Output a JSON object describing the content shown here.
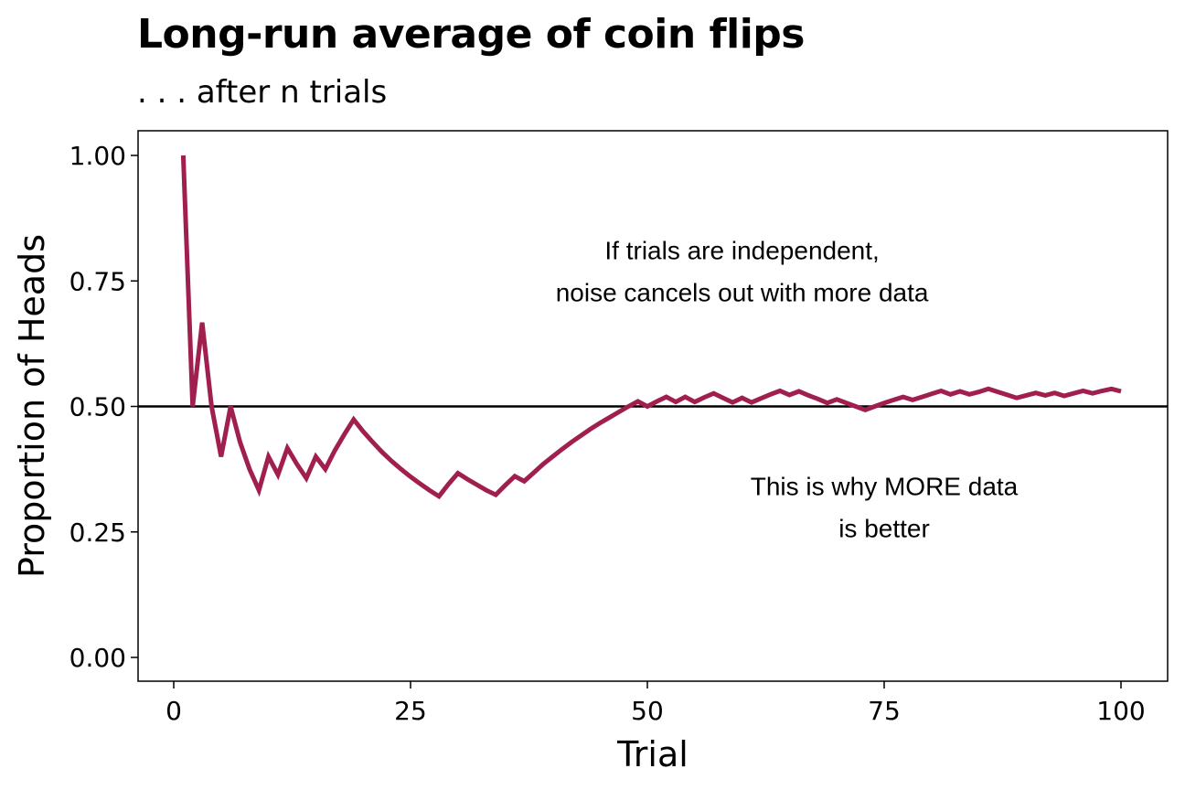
{
  "chart_data": {
    "type": "line",
    "title": "Long-run average of coin flips",
    "subtitle": ". . . after n trials",
    "xlabel": "Trial",
    "ylabel": "Proportion of Heads",
    "xlim": [
      0,
      100
    ],
    "ylim": [
      0,
      1
    ],
    "x_ticks": [
      "0",
      "25",
      "50",
      "75",
      "100"
    ],
    "y_ticks": [
      "0.00",
      "0.25",
      "0.50",
      "0.75",
      "1.00"
    ],
    "grid": false,
    "reference_line": {
      "y": 0.5,
      "color": "#000000"
    },
    "line_color": "#a01f4f",
    "annotations": [
      {
        "lines": [
          "If trials are independent,",
          "noise cancels out with more data"
        ],
        "x": 60,
        "y": 0.77
      },
      {
        "lines": [
          "This is why MORE data",
          "is better"
        ],
        "x": 75,
        "y": 0.3
      }
    ],
    "series": [
      {
        "x": [
          1,
          2,
          3,
          4,
          5,
          6,
          7,
          8,
          9,
          10,
          11,
          12,
          13,
          14,
          15,
          16,
          17,
          18,
          19,
          20,
          21,
          22,
          23,
          24,
          25,
          26,
          27,
          28,
          29,
          30,
          31,
          32,
          33,
          34,
          35,
          36,
          37,
          38,
          39,
          40,
          41,
          42,
          43,
          44,
          45,
          46,
          47,
          48,
          49,
          50,
          51,
          52,
          53,
          54,
          55,
          56,
          57,
          58,
          59,
          60,
          61,
          62,
          63,
          64,
          65,
          66,
          67,
          68,
          69,
          70,
          71,
          72,
          73,
          74,
          75,
          76,
          77,
          78,
          79,
          80,
          81,
          82,
          83,
          84,
          85,
          86,
          87,
          88,
          89,
          90,
          91,
          92,
          93,
          94,
          95,
          96,
          97,
          98,
          99,
          100
        ],
        "values": [
          1.0,
          0.5,
          0.667,
          0.5,
          0.4,
          0.5,
          0.429,
          0.375,
          0.333,
          0.4,
          0.364,
          0.417,
          0.385,
          0.357,
          0.4,
          0.375,
          0.412,
          0.444,
          0.474,
          0.45,
          0.429,
          0.409,
          0.391,
          0.375,
          0.36,
          0.346,
          0.333,
          0.321,
          0.345,
          0.367,
          0.355,
          0.344,
          0.333,
          0.324,
          0.343,
          0.361,
          0.351,
          0.368,
          0.385,
          0.4,
          0.415,
          0.429,
          0.442,
          0.455,
          0.467,
          0.478,
          0.489,
          0.5,
          0.51,
          0.5,
          0.51,
          0.519,
          0.509,
          0.519,
          0.509,
          0.518,
          0.526,
          0.517,
          0.508,
          0.517,
          0.508,
          0.516,
          0.524,
          0.531,
          0.523,
          0.53,
          0.522,
          0.515,
          0.507,
          0.514,
          0.507,
          0.5,
          0.493,
          0.5,
          0.507,
          0.513,
          0.519,
          0.513,
          0.519,
          0.525,
          0.531,
          0.524,
          0.53,
          0.524,
          0.529,
          0.535,
          0.529,
          0.523,
          0.517,
          0.522,
          0.527,
          0.522,
          0.527,
          0.521,
          0.526,
          0.531,
          0.526,
          0.531,
          0.535,
          0.53
        ]
      }
    ]
  }
}
